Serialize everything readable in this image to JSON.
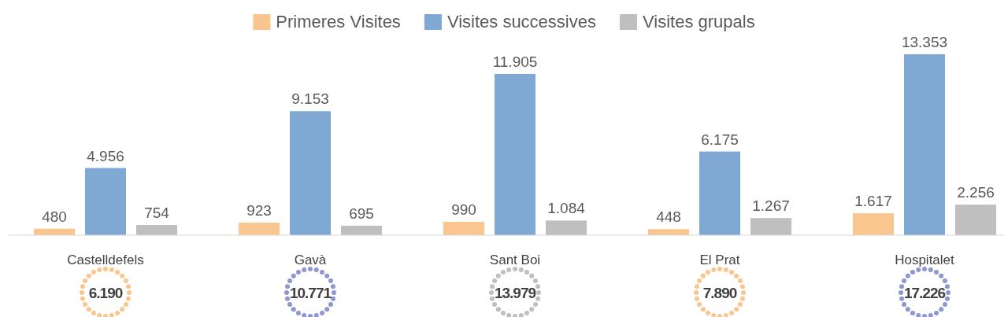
{
  "chart_data": {
    "type": "bar",
    "categories": [
      "Castelldefels",
      "Gavà",
      "Sant Boi",
      "El Prat",
      "Hospitalet"
    ],
    "series": [
      {
        "name": "Primeres Visites",
        "color": "#f9c68f",
        "values": [
          480,
          923,
          990,
          448,
          1617
        ],
        "value_labels": [
          "480",
          "923",
          "990",
          "448",
          "1.617"
        ]
      },
      {
        "name": "Visites successives",
        "color": "#7fa8d2",
        "values": [
          4956,
          9153,
          11905,
          6175,
          13353
        ],
        "value_labels": [
          "4.956",
          "9.153",
          "11.905",
          "6.175",
          "13.353"
        ]
      },
      {
        "name": "Visites grupals",
        "color": "#bfbfbf",
        "values": [
          754,
          695,
          1084,
          1267,
          2256
        ],
        "value_labels": [
          "754",
          "695",
          "1.084",
          "1.267",
          "2.256"
        ]
      }
    ],
    "annotations": [
      "6.190",
      "10.771",
      "13.979",
      "7.890",
      "17.226"
    ],
    "legend": "top"
  }
}
